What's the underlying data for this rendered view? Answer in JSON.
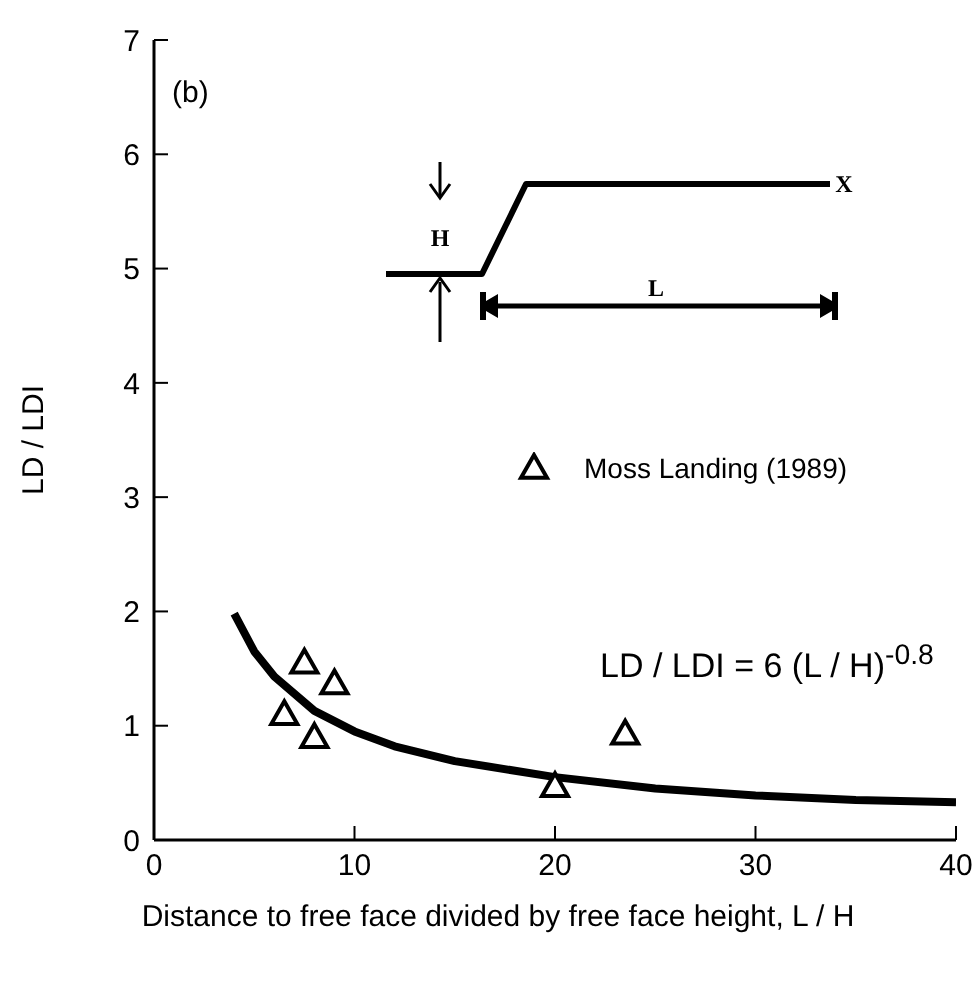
{
  "chart_data": {
    "type": "scatter",
    "xlabel": "Distance to free face divided by free face height, L / H",
    "ylabel": "LD / LDI",
    "xlim": [
      0,
      40
    ],
    "ylim": [
      0,
      7
    ],
    "xticks": [
      0,
      10,
      20,
      30,
      40
    ],
    "yticks": [
      0,
      1,
      2,
      3,
      4,
      5,
      6,
      7
    ],
    "legend": "right",
    "marker": "triangle",
    "annotations": [
      "(b)",
      "LD / LDI = 6 (L / H)$^{-0.8}$",
      "H",
      "L",
      "X"
    ],
    "series": [
      {
        "name": "Moss Landing (1989)",
        "color": "#000000",
        "x": [
          6.5,
          7.5,
          8,
          9,
          20,
          23.5
        ],
        "values": [
          1.1,
          1.55,
          0.9,
          1.37,
          0.47,
          0.93
        ]
      },
      {
        "type": "line",
        "color": "#000000",
        "line_style": "solid",
        "marker": "none",
        "x": [
          4,
          5,
          6,
          8,
          10,
          12,
          15,
          20,
          25,
          30,
          35,
          40
        ],
        "values": [
          1.98,
          1.65,
          1.43,
          1.13,
          0.95,
          0.82,
          0.69,
          0.55,
          0.45,
          0.39,
          0.35,
          0.33
        ]
      }
    ]
  }
}
